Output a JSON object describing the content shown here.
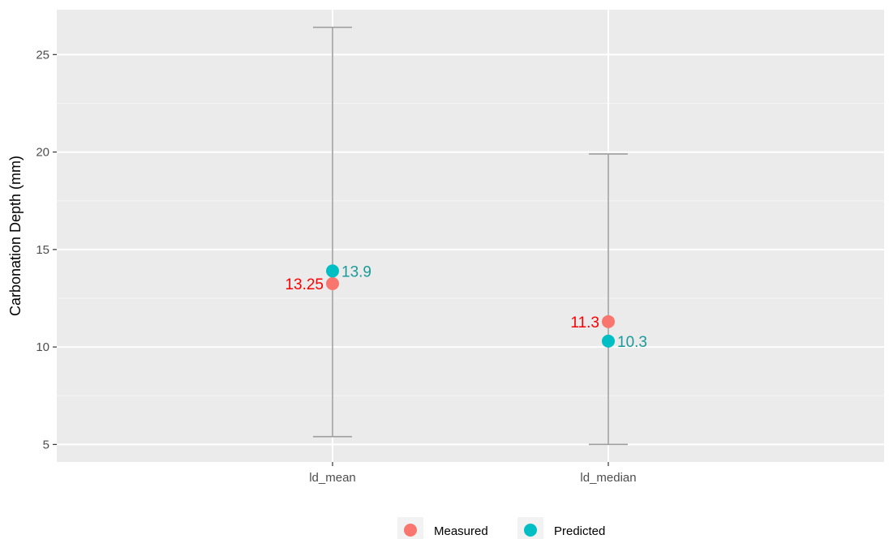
{
  "chart_data": {
    "type": "scatter",
    "title": "",
    "xlabel": "",
    "ylabel": "Carbonation Depth (mm)",
    "categories": [
      "ld_mean",
      "ld_median"
    ],
    "ylim": [
      4.1,
      27.3
    ],
    "yticks": [
      5,
      10,
      15,
      20,
      25
    ],
    "grid": true,
    "legend_position": "bottom",
    "error_bars": [
      {
        "category": "ld_mean",
        "low": 5.4,
        "high": 26.4
      },
      {
        "category": "ld_median",
        "low": 5.0,
        "high": 19.9
      }
    ],
    "series": [
      {
        "name": "Measured",
        "color": "#F8766D",
        "label_color": "#FF0000",
        "values": [
          13.25,
          11.3
        ],
        "labels": [
          "13.25",
          "11.3"
        ],
        "label_side": "left"
      },
      {
        "name": "Predicted",
        "color": "#00BFC4",
        "label_color": "#1A9A9A",
        "values": [
          13.9,
          10.3
        ],
        "labels": [
          "13.9",
          "10.3"
        ],
        "label_side": "right"
      }
    ]
  }
}
